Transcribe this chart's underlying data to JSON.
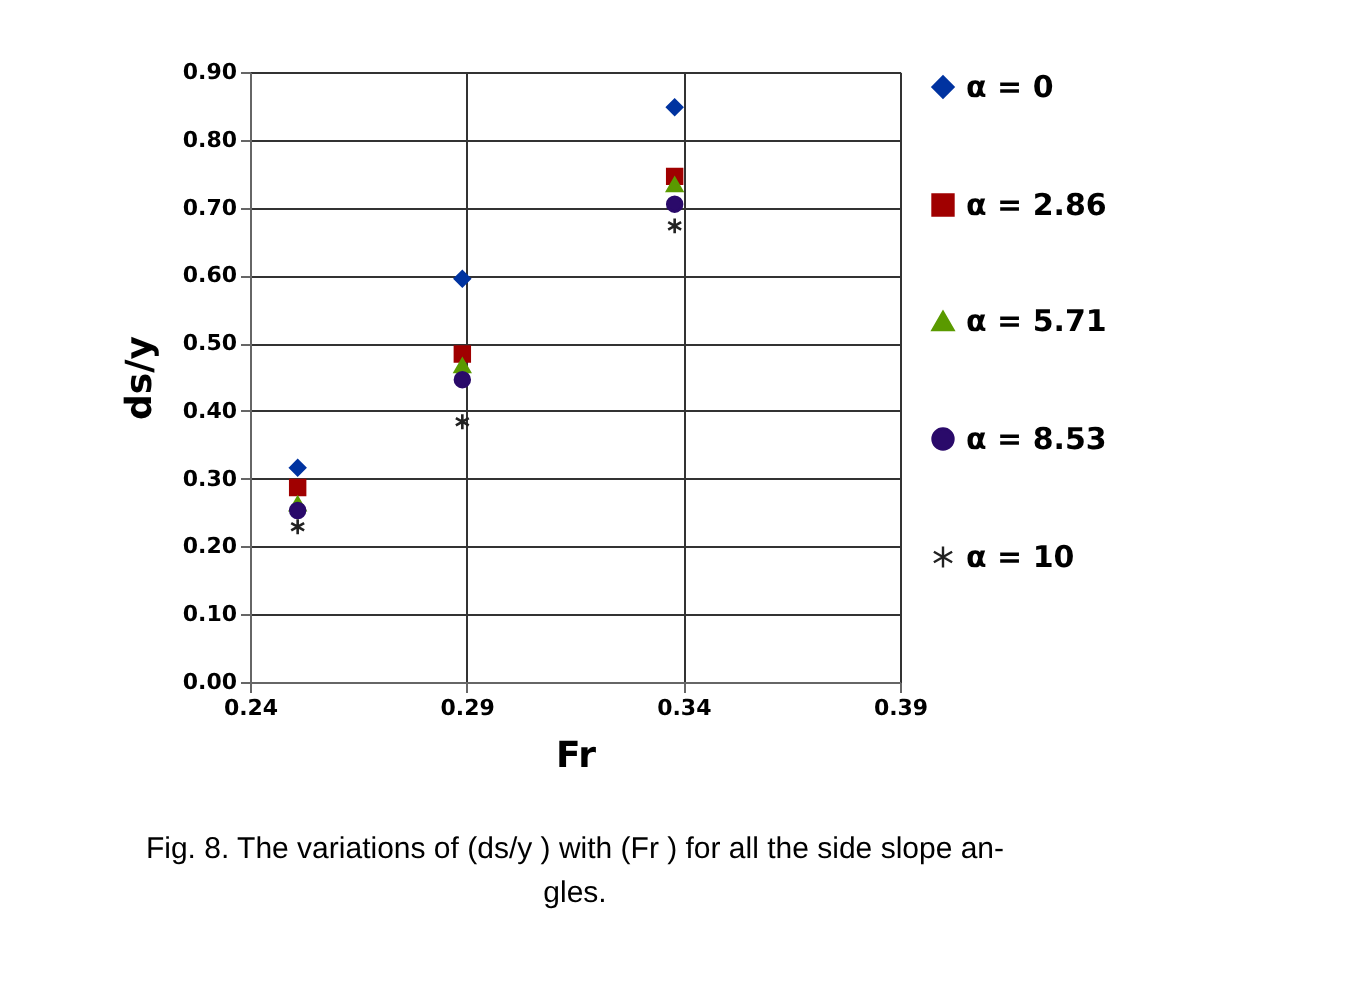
{
  "chart_data": {
    "type": "scatter",
    "xlabel": "Fr",
    "ylabel": "ds/y",
    "x": [
      0.251,
      0.289,
      0.338
    ],
    "series": [
      {
        "name": "α = 0",
        "color": "#0033a0",
        "marker": "diamond",
        "values": [
          0.316,
          0.595,
          0.848
        ]
      },
      {
        "name": "α = 2.86",
        "color": "#a00000",
        "marker": "square",
        "values": [
          0.287,
          0.484,
          0.746
        ]
      },
      {
        "name": "α = 5.71",
        "color": "#5a9a00",
        "marker": "triangle",
        "values": [
          0.263,
          0.467,
          0.734
        ]
      },
      {
        "name": "α = 8.53",
        "color": "#2a0a6a",
        "marker": "circle",
        "values": [
          0.253,
          0.446,
          0.705
        ]
      },
      {
        "name": "α = 10",
        "color": "#222222",
        "marker": "cross",
        "values": [
          0.229,
          0.384,
          0.673
        ]
      }
    ],
    "xlim": [
      0.24,
      0.39
    ],
    "xticks": [
      0.24,
      0.29,
      0.34,
      0.39
    ],
    "ylim": [
      0,
      0.9
    ],
    "yticks": [
      {
        "value": 0,
        "label": "0.00"
      },
      {
        "value": 0.1,
        "label": "0.10"
      },
      {
        "value": 0.2,
        "label": "0.20"
      },
      {
        "value": 0.3,
        "label": "0.30"
      },
      {
        "value": 0.4,
        "label": "0.40"
      },
      {
        "value": 0.5,
        "label": "0.50"
      },
      {
        "value": 0.6,
        "label": "0.60"
      },
      {
        "value": 0.7,
        "label": "0.70"
      },
      {
        "value": 0.8,
        "label": "0.80"
      },
      {
        "value": 0.9,
        "label": "0.90"
      }
    ],
    "grid": true,
    "legend": "right",
    "annotations": [
      "Fig. 8. The variations of (ds/y ) with (Fr ) for all the side slope an- gles."
    ]
  }
}
